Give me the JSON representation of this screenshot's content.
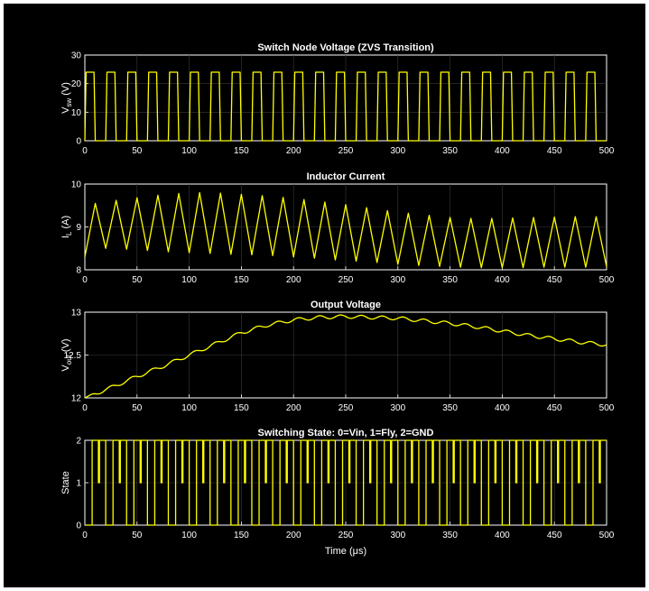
{
  "colors": {
    "background": "#000000",
    "axes": "#ffffff",
    "trace": "#ffff00",
    "grid": "#3a3a3a"
  },
  "chart_data": [
    {
      "type": "line",
      "title": "Switch Node Voltage (ZVS Transition)",
      "ylabel_main": "V",
      "ylabel_sub": "sw",
      "ylabel_unit": "(V)",
      "xlabel": "",
      "xlim": [
        0,
        500
      ],
      "ylim": [
        0,
        30
      ],
      "xticks": [
        0,
        50,
        100,
        150,
        200,
        250,
        300,
        350,
        400,
        450,
        500
      ],
      "yticks": [
        0,
        10,
        20,
        30
      ],
      "grid": true,
      "series": [
        {
          "signal": "pwm",
          "period_us": 20,
          "duty": 0.5,
          "low": 0,
          "high": 24,
          "x_range": [
            0,
            500
          ]
        }
      ]
    },
    {
      "type": "line",
      "title": "Inductor Current",
      "ylabel_main": "I",
      "ylabel_sub": "L",
      "ylabel_unit": "(A)",
      "xlabel": "",
      "xlim": [
        0,
        500
      ],
      "ylim": [
        8,
        10
      ],
      "xticks": [
        0,
        50,
        100,
        150,
        200,
        250,
        300,
        350,
        400,
        450,
        500
      ],
      "yticks": [
        8,
        9,
        10
      ],
      "grid": true,
      "series": [
        {
          "signal": "triangle",
          "x": [
            0,
            10,
            20,
            30,
            40,
            50,
            60,
            70,
            80,
            90,
            100,
            110,
            120,
            130,
            140,
            150,
            160,
            170,
            180,
            190,
            200,
            210,
            220,
            230,
            240,
            250,
            260,
            270,
            280,
            290,
            300,
            310,
            320,
            330,
            340,
            350,
            360,
            370,
            380,
            390,
            400,
            410,
            420,
            430,
            440,
            450,
            460,
            470,
            480,
            490,
            500
          ],
          "y": [
            8.3,
            9.55,
            8.5,
            9.62,
            8.48,
            9.68,
            8.45,
            9.74,
            8.42,
            9.78,
            8.4,
            9.8,
            8.38,
            9.79,
            8.36,
            9.76,
            8.35,
            9.73,
            8.33,
            9.69,
            8.3,
            9.64,
            8.27,
            9.58,
            8.23,
            9.52,
            8.2,
            9.45,
            8.17,
            9.38,
            8.13,
            9.32,
            8.1,
            9.27,
            8.08,
            9.22,
            8.06,
            9.2,
            8.05,
            9.2,
            8.05,
            9.21,
            8.05,
            9.22,
            8.06,
            9.23,
            8.06,
            9.24,
            8.06,
            9.24,
            8.07
          ]
        }
      ]
    },
    {
      "type": "line",
      "title": "Output Voltage",
      "ylabel_main": "V",
      "ylabel_sub": "out",
      "ylabel_unit": "(V)",
      "xlabel": "",
      "xlim": [
        0,
        500
      ],
      "ylim": [
        12,
        13
      ],
      "xticks": [
        0,
        50,
        100,
        150,
        200,
        250,
        300,
        350,
        400,
        450,
        500
      ],
      "yticks": [
        12,
        12.5,
        13
      ],
      "grid": true,
      "series": [
        {
          "signal": "rippled",
          "ripple_amplitude": 0.02,
          "ripple_period_us": 20,
          "x": [
            0,
            25,
            50,
            75,
            100,
            125,
            150,
            175,
            200,
            225,
            250,
            275,
            300,
            325,
            350,
            375,
            400,
            425,
            450,
            475,
            500
          ],
          "y": [
            12.0,
            12.12,
            12.25,
            12.37,
            12.5,
            12.63,
            12.76,
            12.85,
            12.91,
            12.94,
            12.95,
            12.94,
            12.93,
            12.9,
            12.87,
            12.83,
            12.78,
            12.73,
            12.69,
            12.65,
            12.62
          ]
        }
      ]
    },
    {
      "type": "line",
      "title": "Switching State: 0=Vin, 1=Fly, 2=GND",
      "ylabel_main": "State",
      "ylabel_sub": "",
      "ylabel_unit": "",
      "xlabel": "Time (μs)",
      "xlim": [
        0,
        500
      ],
      "ylim": [
        0,
        2
      ],
      "xticks": [
        0,
        50,
        100,
        150,
        200,
        250,
        300,
        350,
        400,
        450,
        500
      ],
      "yticks": [
        0,
        1,
        2
      ],
      "grid": true,
      "series": [
        {
          "signal": "states",
          "period_us": 20,
          "sequence": [
            0,
            2,
            1,
            2
          ],
          "segment_fractions": [
            0.35,
            0.3,
            0.05,
            0.3
          ],
          "x_range": [
            0,
            500
          ]
        }
      ]
    }
  ]
}
